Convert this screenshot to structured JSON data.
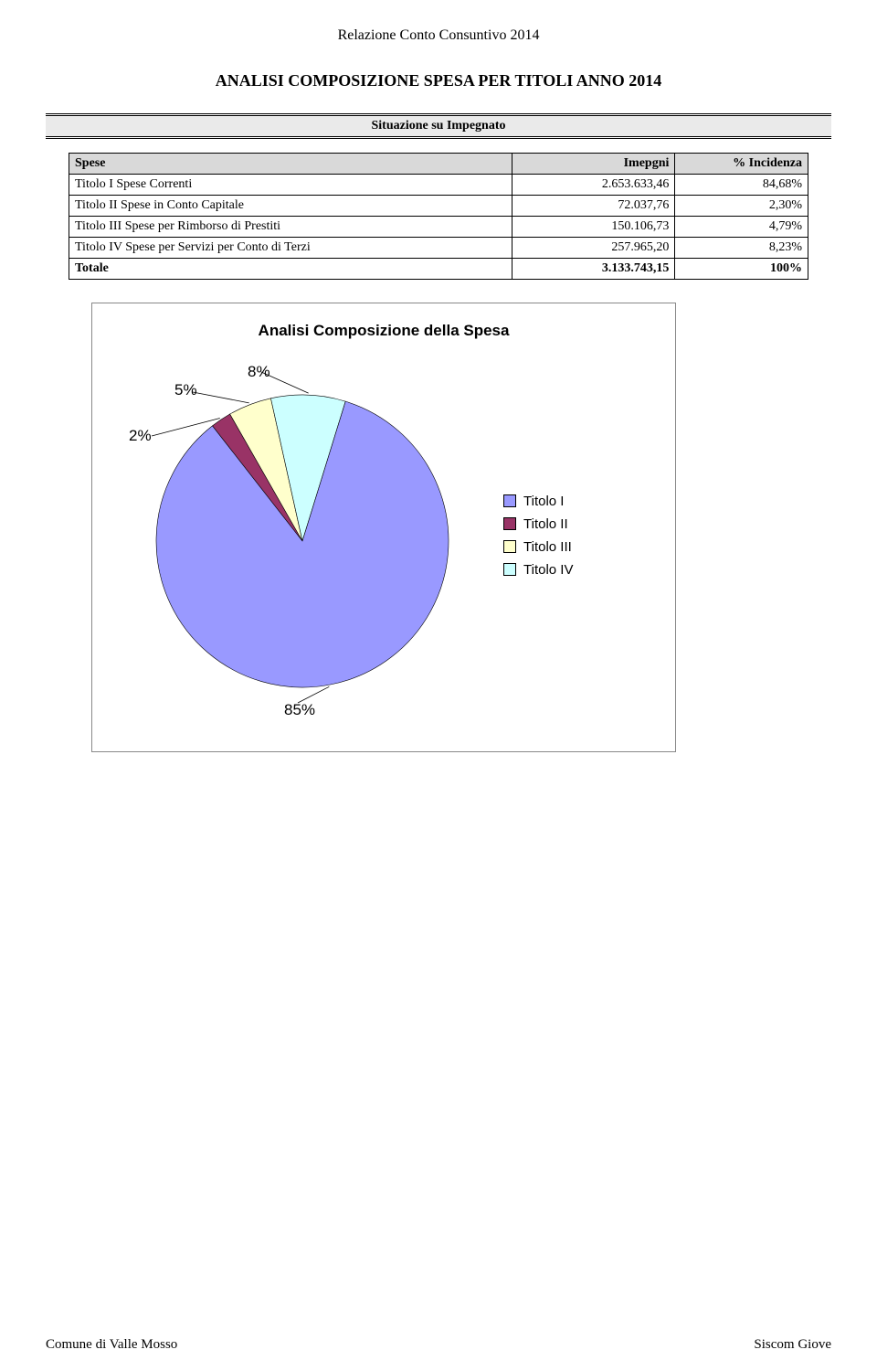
{
  "doc_header": "Relazione Conto Consuntivo 2014",
  "page_title": "ANALISI COMPOSIZIONE SPESA PER TITOLI ANNO 2014",
  "subtitle": "Situazione su Impegnato",
  "table": {
    "headers": {
      "spese": "Spese",
      "imepgni": "Imepgni",
      "incidenza": "% Incidenza"
    },
    "rows": [
      {
        "name": "Titolo I Spese Correnti",
        "imp": "2.653.633,46",
        "pct": "84,68%"
      },
      {
        "name": "Titolo II Spese in Conto Capitale",
        "imp": "72.037,76",
        "pct": "2,30%"
      },
      {
        "name": "Titolo III Spese per Rimborso di Prestiti",
        "imp": "150.106,73",
        "pct": "4,79%"
      },
      {
        "name": "Titolo IV Spese per Servizi per Conto di Terzi",
        "imp": "257.965,20",
        "pct": "8,23%"
      }
    ],
    "total": {
      "name": "Totale",
      "imp": "3.133.743,15",
      "pct": "100%"
    }
  },
  "chart": {
    "title": "Analisi Composizione della Spesa",
    "type": "pie",
    "background_color": "#ffffff",
    "slices": [
      {
        "label": "Titolo I",
        "value": 84.68,
        "color": "#9999ff",
        "display_pct": "85%"
      },
      {
        "label": "Titolo II",
        "value": 2.3,
        "color": "#993366",
        "display_pct": "2%"
      },
      {
        "label": "Titolo III",
        "value": 4.79,
        "color": "#ffffcc",
        "display_pct": "5%"
      },
      {
        "label": "Titolo IV",
        "value": 8.23,
        "color": "#ccffff",
        "display_pct": "8%"
      }
    ],
    "start_angle_deg": -128,
    "stroke_color": "#000000",
    "stroke_width": 0.6,
    "label_font_family": "Arial",
    "label_font_size_pt": 13
  },
  "footer": {
    "left": "Comune di Valle Mosso",
    "right": "Siscom Giove"
  }
}
